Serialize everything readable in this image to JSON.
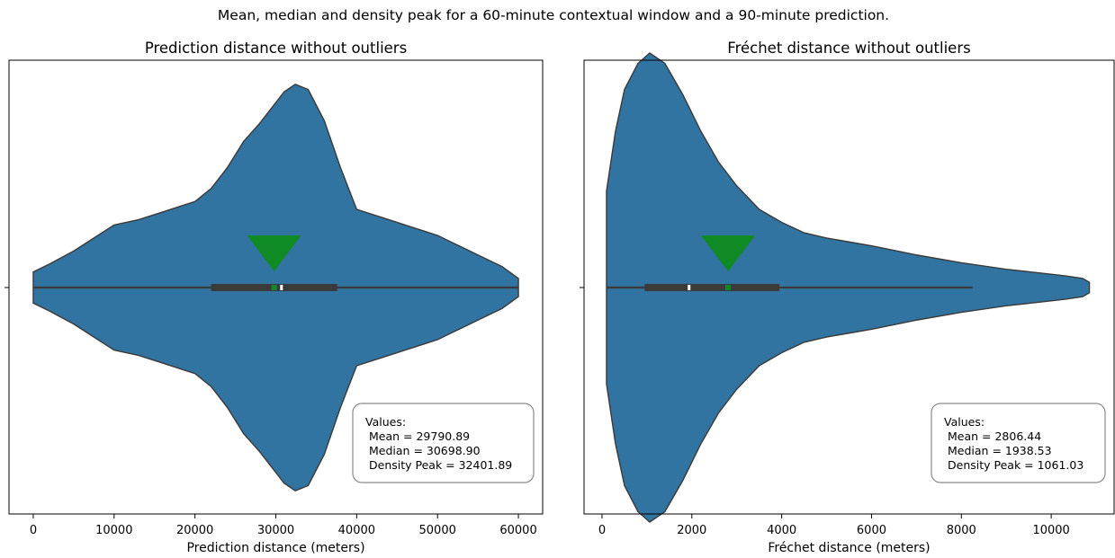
{
  "suptitle": "Mean, median and density peak for a 60-minute contextual window and a 90-minute prediction.",
  "chart_data": [
    {
      "type": "violin",
      "title": "Prediction distance without outliers",
      "xlabel": "Prediction distance (meters)",
      "ylabel": "",
      "xlim": [
        -3000,
        63000
      ],
      "xticks": [
        0,
        10000,
        20000,
        30000,
        40000,
        50000,
        60000
      ],
      "xtick_labels": [
        "0",
        "10000",
        "20000",
        "30000",
        "40000",
        "50000",
        "60000"
      ],
      "violin_profile": [
        [
          0,
          0.06
        ],
        [
          2000,
          0.09
        ],
        [
          5000,
          0.14
        ],
        [
          8000,
          0.2
        ],
        [
          10000,
          0.24
        ],
        [
          13000,
          0.26
        ],
        [
          16000,
          0.29
        ],
        [
          18000,
          0.31
        ],
        [
          20000,
          0.33
        ],
        [
          22000,
          0.38
        ],
        [
          24000,
          0.46
        ],
        [
          26000,
          0.56
        ],
        [
          28000,
          0.63
        ],
        [
          29500,
          0.69
        ],
        [
          31000,
          0.75
        ],
        [
          32400,
          0.78
        ],
        [
          34000,
          0.76
        ],
        [
          36000,
          0.64
        ],
        [
          38000,
          0.46
        ],
        [
          40000,
          0.3
        ],
        [
          42000,
          0.28
        ],
        [
          44000,
          0.26
        ],
        [
          46000,
          0.24
        ],
        [
          48000,
          0.22
        ],
        [
          50000,
          0.2
        ],
        [
          52000,
          0.17
        ],
        [
          54000,
          0.14
        ],
        [
          56000,
          0.11
        ],
        [
          58000,
          0.08
        ],
        [
          60000,
          0.035
        ]
      ],
      "box": {
        "whisker_low": 0,
        "q1": 22000,
        "median": 30698.9,
        "q3": 37600,
        "whisker_high": 60000
      },
      "mean": 29790.89,
      "median": 30698.9,
      "density_peak": 32401.89,
      "legend_box": {
        "heading": "Values:",
        "mean_text": "Mean = 29790.89",
        "median_text": "Median = 30698.90",
        "peak_text": "Density Peak = 32401.89",
        "position": "bottom-right"
      }
    },
    {
      "type": "violin",
      "title": "Fréchet distance without outliers",
      "xlabel": "Fréchet distance (meters)",
      "ylabel": "",
      "xlim": [
        -400,
        11400
      ],
      "xticks": [
        0,
        2000,
        4000,
        6000,
        8000,
        10000
      ],
      "xtick_labels": [
        "0",
        "2000",
        "4000",
        "6000",
        "8000",
        "10000"
      ],
      "violin_profile": [
        [
          100,
          0.37
        ],
        [
          300,
          0.6
        ],
        [
          500,
          0.76
        ],
        [
          800,
          0.86
        ],
        [
          1061,
          0.9
        ],
        [
          1400,
          0.86
        ],
        [
          1800,
          0.74
        ],
        [
          2200,
          0.6
        ],
        [
          2600,
          0.48
        ],
        [
          3000,
          0.39
        ],
        [
          3500,
          0.3
        ],
        [
          4000,
          0.25
        ],
        [
          4500,
          0.21
        ],
        [
          5000,
          0.19
        ],
        [
          5500,
          0.175
        ],
        [
          6000,
          0.16
        ],
        [
          7000,
          0.125
        ],
        [
          8000,
          0.095
        ],
        [
          9000,
          0.07
        ],
        [
          9800,
          0.055
        ],
        [
          10300,
          0.045
        ],
        [
          10700,
          0.035
        ],
        [
          10850,
          0.02
        ]
      ],
      "box": {
        "whisker_low": 100,
        "q1": 950,
        "median": 1938.53,
        "q3": 3950,
        "whisker_high": 8250
      },
      "mean": 2806.44,
      "median": 1938.53,
      "density_peak": 1061.03,
      "legend_box": {
        "heading": "Values:",
        "mean_text": "Mean = 2806.44",
        "median_text": "Median = 1938.53",
        "peak_text": "Density Peak = 1061.03",
        "position": "bottom-right"
      }
    }
  ],
  "colors": {
    "violin_fill": "#3274a1",
    "violin_edge": "#3a3a3a",
    "box": "#3a3a3a",
    "median_marker": "#ffffff",
    "mean_marker": "#0f8a25"
  }
}
